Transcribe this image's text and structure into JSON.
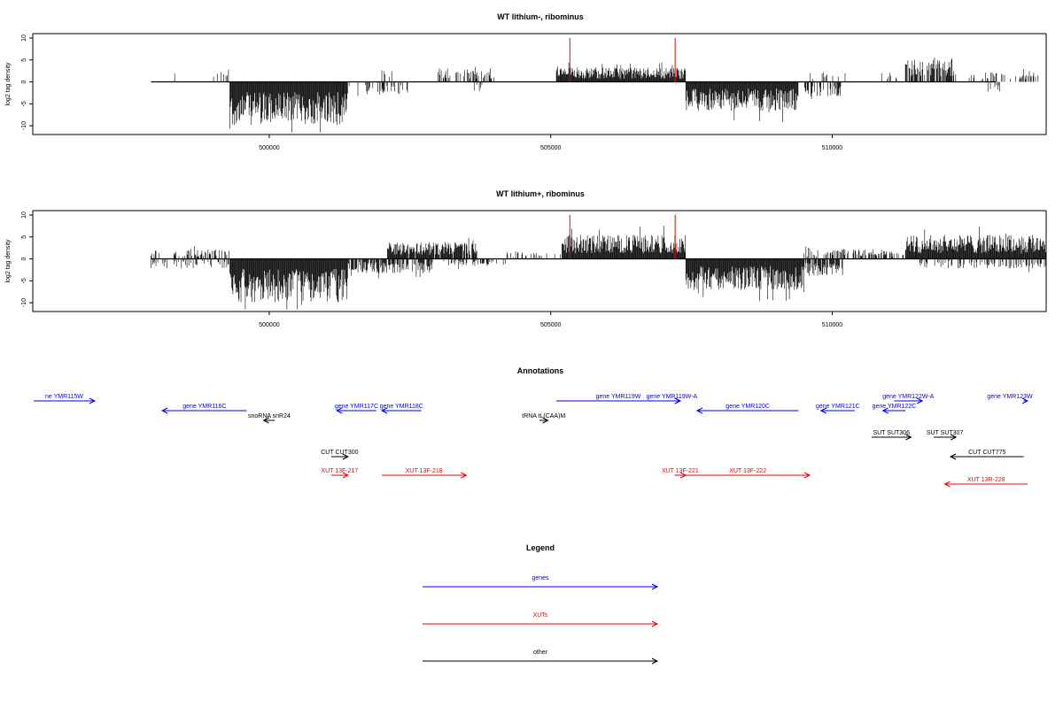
{
  "chart_data": [
    {
      "type": "bar",
      "title": "WT lithium-, ribominus",
      "ylabel": "log2 tag density",
      "xlabel": "",
      "xlim": [
        495800,
        513800
      ],
      "ylim": [
        -12,
        11
      ],
      "x_ticks": [
        500000,
        505000,
        510000
      ],
      "x_tick_labels": [
        "500000",
        "505000",
        "510000"
      ],
      "y_ticks": [
        10,
        5,
        0,
        -5,
        -10
      ],
      "y_tick_labels": [
        "10",
        "5",
        "0",
        "-5",
        "-10"
      ],
      "baseline_range": [
        497900,
        512900
      ],
      "regions": [
        {
          "start": 498100,
          "end": 498400,
          "height": 3,
          "sign": 1,
          "density": 0.15
        },
        {
          "start": 499000,
          "end": 499300,
          "height": 3,
          "sign": 1,
          "density": 0.3
        },
        {
          "start": 499300,
          "end": 501400,
          "height": 9,
          "sign": -1,
          "density": 1.0
        },
        {
          "start": 501200,
          "end": 502500,
          "height": 3,
          "sign": -1,
          "density": 0.2
        },
        {
          "start": 502000,
          "end": 502200,
          "height": 3,
          "sign": 1,
          "density": 0.3
        },
        {
          "start": 503000,
          "end": 504000,
          "height": 3,
          "sign": 1,
          "density": 0.5
        },
        {
          "start": 503600,
          "end": 503800,
          "height": 2,
          "sign": -1,
          "density": 0.2
        },
        {
          "start": 505100,
          "end": 507400,
          "height": 3,
          "sign": 1,
          "density": 1.0
        },
        {
          "start": 507400,
          "end": 509400,
          "height": 6,
          "sign": -1,
          "density": 1.0
        },
        {
          "start": 509500,
          "end": 510200,
          "height": 3,
          "sign": -1,
          "density": 0.4
        },
        {
          "start": 509600,
          "end": 510400,
          "height": 2,
          "sign": 1,
          "density": 0.2
        },
        {
          "start": 510800,
          "end": 511200,
          "height": 2,
          "sign": 1,
          "density": 0.2
        },
        {
          "start": 511300,
          "end": 512200,
          "height": 5,
          "sign": 1,
          "density": 0.8
        },
        {
          "start": 512400,
          "end": 513700,
          "height": 2,
          "sign": 1,
          "density": 0.3
        },
        {
          "start": 512600,
          "end": 513000,
          "height": 2,
          "sign": -1,
          "density": 0.2
        }
      ],
      "red_lines": [
        505340,
        507210
      ],
      "red_line_height": 10
    },
    {
      "type": "bar",
      "title": "WT lithium+, ribominus",
      "ylabel": "log2 tag density",
      "xlabel": "",
      "xlim": [
        495800,
        513800
      ],
      "ylim": [
        -12,
        11
      ],
      "x_ticks": [
        500000,
        505000,
        510000
      ],
      "x_tick_labels": [
        "500000",
        "505000",
        "510000"
      ],
      "y_ticks": [
        10,
        5,
        0,
        -5,
        -10
      ],
      "y_tick_labels": [
        "10",
        "5",
        "0",
        "-5",
        "-10"
      ],
      "baseline_range": [
        497900,
        513800
      ],
      "regions": [
        {
          "start": 497900,
          "end": 499300,
          "height": 2,
          "sign": 1,
          "density": 0.3
        },
        {
          "start": 497900,
          "end": 499300,
          "height": 2,
          "sign": -1,
          "density": 0.3
        },
        {
          "start": 499300,
          "end": 501400,
          "height": 9,
          "sign": -1,
          "density": 1.0
        },
        {
          "start": 501400,
          "end": 502900,
          "height": 3,
          "sign": -1,
          "density": 0.7
        },
        {
          "start": 502100,
          "end": 503700,
          "height": 3.5,
          "sign": 1,
          "density": 0.9
        },
        {
          "start": 503100,
          "end": 504200,
          "height": 1.5,
          "sign": -1,
          "density": 0.4
        },
        {
          "start": 504200,
          "end": 505200,
          "height": 1.5,
          "sign": 1,
          "density": 0.2
        },
        {
          "start": 505200,
          "end": 507400,
          "height": 5,
          "sign": 1,
          "density": 1.0
        },
        {
          "start": 507400,
          "end": 509500,
          "height": 6.5,
          "sign": -1,
          "density": 1.0
        },
        {
          "start": 509500,
          "end": 510200,
          "height": 3.5,
          "sign": -1,
          "density": 0.7
        },
        {
          "start": 509500,
          "end": 511300,
          "height": 2,
          "sign": 1,
          "density": 0.4
        },
        {
          "start": 511300,
          "end": 513800,
          "height": 5,
          "sign": 1,
          "density": 1.0
        },
        {
          "start": 511500,
          "end": 513800,
          "height": 2,
          "sign": -1,
          "density": 0.4
        }
      ],
      "red_lines": [
        505340,
        507210
      ],
      "red_line_height": 10
    }
  ],
  "annotations": {
    "title": "Annotations",
    "colors": {
      "gene": "#0000ee",
      "xut": "#ee0000",
      "other": "#000000"
    },
    "items": [
      {
        "label": "ne YMR115W",
        "kind": "gene",
        "start": 495800,
        "end": 496900,
        "strand": "+",
        "row": 0
      },
      {
        "label": "gene YMR116C",
        "kind": "gene",
        "start": 498100,
        "end": 499600,
        "strand": "-",
        "row": 1
      },
      {
        "label": "gene YMR117C",
        "kind": "gene",
        "start": 501200,
        "end": 501900,
        "strand": "-",
        "row": 1
      },
      {
        "label": "gene YMR118C",
        "kind": "gene",
        "start": 502000,
        "end": 502700,
        "strand": "-",
        "row": 1
      },
      {
        "label": "snoRNA snR24",
        "kind": "other",
        "start": 499900,
        "end": 500100,
        "strand": "-",
        "row": 2
      },
      {
        "label": "tRNA tL(CAA)M",
        "kind": "other",
        "start": 504800,
        "end": 504950,
        "strand": "+",
        "row": 2
      },
      {
        "label": "gene YMR119W",
        "kind": "gene",
        "start": 505100,
        "end": 507300,
        "strand": "+",
        "row": 0
      },
      {
        "label": "gene YMR119W-A",
        "kind": "gene",
        "start": 507000,
        "end": 507300,
        "strand": "+",
        "row": 0
      },
      {
        "label": "gene YMR120C",
        "kind": "gene",
        "start": 507600,
        "end": 509400,
        "strand": "-",
        "row": 1
      },
      {
        "label": "gene YMR121C",
        "kind": "gene",
        "start": 509800,
        "end": 510400,
        "strand": "-",
        "row": 1
      },
      {
        "label": "gene YMR122C",
        "kind": "gene",
        "start": 510900,
        "end": 511300,
        "strand": "-",
        "row": 1
      },
      {
        "label": "gene YMR122W-A",
        "kind": "gene",
        "start": 511100,
        "end": 511600,
        "strand": "+",
        "row": 0
      },
      {
        "label": "gene YMR123W",
        "kind": "gene",
        "start": 513400,
        "end": 513800,
        "strand": "+",
        "row": 0
      },
      {
        "label": "CUT CUT300",
        "kind": "other",
        "start": 501100,
        "end": 501400,
        "strand": "+",
        "row": 4
      },
      {
        "label": "SUT SUT306",
        "kind": "other",
        "start": 510700,
        "end": 511400,
        "strand": "+",
        "row": 3
      },
      {
        "label": "SUT SUT307",
        "kind": "other",
        "start": 511800,
        "end": 512200,
        "strand": "+",
        "row": 3
      },
      {
        "label": "CUT CUT775",
        "kind": "other",
        "start": 512100,
        "end": 513400,
        "strand": "-",
        "row": 4
      },
      {
        "label": "XUT 13F-217",
        "kind": "xut",
        "start": 501100,
        "end": 501400,
        "strand": "+",
        "row": 5
      },
      {
        "label": "XUT 13F-218",
        "kind": "xut",
        "start": 502000,
        "end": 503500,
        "strand": "+",
        "row": 5
      },
      {
        "label": "XUT 13F-221",
        "kind": "xut",
        "start": 507200,
        "end": 507400,
        "strand": "+",
        "row": 5
      },
      {
        "label": "XUT 13F-222",
        "kind": "xut",
        "start": 507400,
        "end": 509600,
        "strand": "+",
        "row": 5
      },
      {
        "label": "XUT 13R-228",
        "kind": "xut",
        "start": 512000,
        "end": 513500,
        "strand": "-",
        "row": 6
      }
    ]
  },
  "legend": {
    "title": "Legend",
    "entries": [
      {
        "label": "genes",
        "color": "#0000ee"
      },
      {
        "label": "XUTs",
        "color": "#ee0000"
      },
      {
        "label": "other",
        "color": "#000000"
      }
    ]
  }
}
